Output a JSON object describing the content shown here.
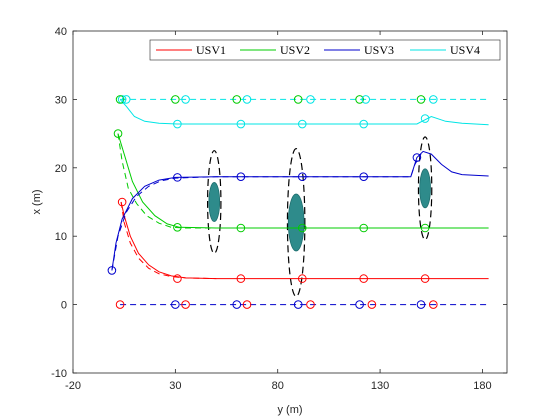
{
  "chart_data": {
    "type": "line",
    "title": "",
    "xlabel": "y (m)",
    "ylabel": "x (m)",
    "xlim": [
      -20,
      192
    ],
    "ylim": [
      -10,
      40
    ],
    "xticks": [
      "-20",
      "30",
      "80",
      "130",
      "180"
    ],
    "yticks": [
      "-10",
      "0",
      "10",
      "20",
      "30",
      "40"
    ],
    "legend_position": "top-right",
    "grid": false,
    "series": [
      {
        "name": "USV1",
        "color": "#ff0000",
        "solid": [
          [
            3.5,
            15
          ],
          [
            5,
            13
          ],
          [
            8,
            10
          ],
          [
            12,
            7.5
          ],
          [
            17,
            5.8
          ],
          [
            22,
            4.8
          ],
          [
            28,
            4.2
          ],
          [
            35,
            3.9
          ],
          [
            50,
            3.8
          ],
          [
            100,
            3.8
          ],
          [
            150,
            3.8
          ],
          [
            160,
            3.8
          ],
          [
            183,
            3.8
          ]
        ],
        "dashed": [
          [
            3.5,
            15
          ],
          [
            5,
            12
          ],
          [
            8,
            9
          ],
          [
            12,
            6.8
          ],
          [
            17,
            5.3
          ],
          [
            22,
            4.5
          ],
          [
            28,
            4.1
          ],
          [
            35,
            3.9
          ],
          [
            50,
            3.8
          ]
        ],
        "markers": [
          [
            4,
            15
          ],
          [
            31,
            3.8
          ],
          [
            62,
            3.8
          ],
          [
            92,
            3.8
          ],
          [
            122,
            3.8
          ],
          [
            152,
            3.8
          ]
        ]
      },
      {
        "name": "USV2",
        "color": "#00cc00",
        "solid": [
          [
            2,
            25
          ],
          [
            5,
            22
          ],
          [
            9,
            18
          ],
          [
            14,
            15
          ],
          [
            20,
            13
          ],
          [
            26,
            11.8
          ],
          [
            32,
            11.3
          ],
          [
            50,
            11.2
          ],
          [
            100,
            11.2
          ],
          [
            150,
            11.2
          ],
          [
            183,
            11.2
          ]
        ],
        "dashed": [
          [
            2,
            25
          ],
          [
            4,
            21
          ],
          [
            7,
            17
          ],
          [
            11,
            14.8
          ],
          [
            16,
            13
          ],
          [
            22,
            11.9
          ],
          [
            28,
            11.3
          ],
          [
            35,
            11.2
          ],
          [
            50,
            11.2
          ]
        ],
        "markers": [
          [
            2,
            25
          ],
          [
            31,
            11.3
          ],
          [
            62,
            11.2
          ],
          [
            92,
            11.2
          ],
          [
            122,
            11.2
          ],
          [
            152,
            11.2
          ]
        ]
      },
      {
        "name": "USV3",
        "color": "#0000cc",
        "solid": [
          [
            -1,
            5
          ],
          [
            1,
            9
          ],
          [
            4,
            12.5
          ],
          [
            9,
            15.5
          ],
          [
            15,
            17.3
          ],
          [
            22,
            18.2
          ],
          [
            30,
            18.6
          ],
          [
            50,
            18.7
          ],
          [
            100,
            18.7
          ],
          [
            145,
            18.7
          ],
          [
            148,
            21.5
          ],
          [
            151,
            22.4
          ],
          [
            155,
            22
          ],
          [
            160,
            20.5
          ],
          [
            165,
            19.4
          ],
          [
            170,
            19
          ],
          [
            183,
            18.8
          ]
        ],
        "dashed": [
          [
            -1,
            5
          ],
          [
            2,
            10
          ],
          [
            6,
            13.5
          ],
          [
            11,
            15.8
          ],
          [
            17,
            17.3
          ],
          [
            23,
            18.1
          ],
          [
            30,
            18.5
          ],
          [
            40,
            18.6
          ],
          [
            50,
            18.7
          ],
          [
            145,
            18.7
          ],
          [
            147,
            20.5
          ],
          [
            150,
            22
          ]
        ],
        "markers": [
          [
            -1,
            5
          ],
          [
            31,
            18.6
          ],
          [
            62,
            18.7
          ],
          [
            92,
            18.7
          ],
          [
            122,
            18.7
          ],
          [
            148,
            21.5
          ]
        ]
      },
      {
        "name": "USV4",
        "color": "#00e5e5",
        "solid": [
          [
            3,
            30
          ],
          [
            6,
            29
          ],
          [
            10,
            27.5
          ],
          [
            15,
            26.8
          ],
          [
            22,
            26.5
          ],
          [
            31,
            26.4
          ],
          [
            50,
            26.4
          ],
          [
            100,
            26.4
          ],
          [
            148,
            26.4
          ],
          [
            155,
            27.5
          ],
          [
            162,
            26.8
          ],
          [
            170,
            26.5
          ],
          [
            183,
            26.3
          ]
        ],
        "dashed": [
          [
            3,
            30
          ],
          [
            183,
            30
          ]
        ],
        "markers": [
          [
            4,
            30
          ],
          [
            31,
            26.4
          ],
          [
            62,
            26.4
          ],
          [
            92,
            26.4
          ],
          [
            122,
            26.4
          ],
          [
            152,
            27.2
          ]
        ]
      }
    ],
    "dashed_reference_markers": [
      [
        [
          3,
          0
        ],
        [
          30,
          0
        ],
        [
          35,
          0
        ],
        [
          60,
          0
        ],
        [
          65,
          0
        ],
        [
          90,
          0
        ],
        [
          96,
          0
        ],
        [
          120,
          0
        ],
        [
          126,
          0
        ],
        [
          150,
          0
        ],
        [
          156,
          0
        ]
      ],
      [
        [
          3,
          30
        ],
        [
          6,
          30
        ],
        [
          30,
          30
        ],
        [
          35,
          30
        ],
        [
          60,
          30
        ],
        [
          65,
          30
        ],
        [
          90,
          30
        ],
        [
          96,
          30
        ],
        [
          120,
          30
        ],
        [
          123,
          30
        ],
        [
          150,
          30
        ],
        [
          156,
          30
        ]
      ]
    ],
    "baseline_dashed": {
      "color": "#0000cc",
      "y": 0,
      "x_from": 3,
      "x_to": 183
    },
    "obstacles": [
      {
        "cx": 49,
        "cy": 15,
        "rx": 6.5,
        "ry": 7.5,
        "core_rx": 2.2,
        "core_ry": 2.2
      },
      {
        "cx": 89,
        "cy": 12,
        "rx": 8.5,
        "ry": 10.8,
        "core_rx": 3.2,
        "core_ry": 3.2
      },
      {
        "cx": 152,
        "cy": 17,
        "rx": 6.5,
        "ry": 7.5,
        "core_rx": 2.2,
        "core_ry": 2.2
      }
    ],
    "obstacle_color": "#2e8b8b"
  }
}
